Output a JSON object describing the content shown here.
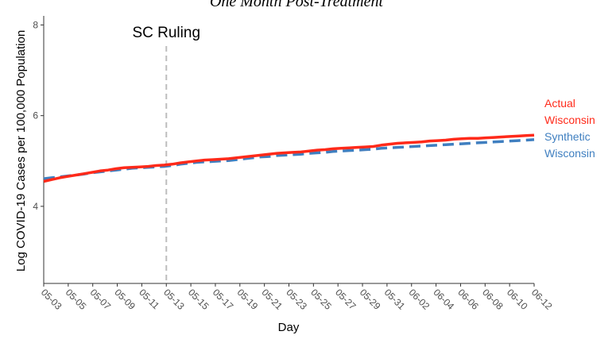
{
  "chart_data": {
    "type": "line",
    "title": "One Month Post-Treatment",
    "xlabel": "Day",
    "ylabel": "Log COVID-19 Cases per 100,000 Population",
    "x_tick_labels": [
      "05-03",
      "05-05",
      "05-07",
      "05-09",
      "05-11",
      "05-13",
      "05-15",
      "05-17",
      "05-19",
      "05-21",
      "05-23",
      "05-25",
      "05-27",
      "05-29",
      "05-31",
      "06-02",
      "06-04",
      "06-06",
      "06-08",
      "06-10",
      "06-12"
    ],
    "y_ticks": [
      4,
      6,
      8
    ],
    "ylim": [
      2.3,
      8.2
    ],
    "grid": false,
    "annotation": {
      "label": "SC Ruling",
      "x_index": 10
    },
    "series": [
      {
        "name": "Actual Wisconsin",
        "label_lines": [
          "Actual",
          "Wisconsin"
        ],
        "color": "#ff2a1a",
        "dash": "solid",
        "values": [
          4.55,
          4.59,
          4.63,
          4.66,
          4.69,
          4.72,
          4.75,
          4.78,
          4.8,
          4.83,
          4.85,
          4.86,
          4.87,
          4.88,
          4.9,
          4.91,
          4.93,
          4.96,
          4.98,
          5.0,
          5.02,
          5.03,
          5.04,
          5.05,
          5.07,
          5.09,
          5.11,
          5.13,
          5.15,
          5.17,
          5.18,
          5.19,
          5.2,
          5.22,
          5.24,
          5.25,
          5.27,
          5.28,
          5.29,
          5.3,
          5.31,
          5.32,
          5.35,
          5.37,
          5.39,
          5.4,
          5.41,
          5.42,
          5.44,
          5.45,
          5.46,
          5.48,
          5.49,
          5.5,
          5.5,
          5.51,
          5.52,
          5.53,
          5.54,
          5.55,
          5.56,
          5.57
        ]
      },
      {
        "name": "Synthetic Wisconsin",
        "label_lines": [
          "Synthetic",
          "Wisconsin"
        ],
        "color": "#3f7fc0",
        "dash": "dashed",
        "values": [
          4.61,
          4.63,
          4.65,
          4.67,
          4.69,
          4.71,
          4.74,
          4.76,
          4.78,
          4.8,
          4.82,
          4.84,
          4.85,
          4.86,
          4.87,
          4.88,
          4.9,
          4.93,
          4.95,
          4.97,
          4.98,
          4.99,
          5.0,
          5.01,
          5.03,
          5.05,
          5.07,
          5.09,
          5.1,
          5.12,
          5.13,
          5.14,
          5.15,
          5.17,
          5.18,
          5.19,
          5.21,
          5.22,
          5.23,
          5.24,
          5.25,
          5.26,
          5.28,
          5.29,
          5.3,
          5.31,
          5.32,
          5.33,
          5.34,
          5.35,
          5.36,
          5.37,
          5.38,
          5.39,
          5.4,
          5.41,
          5.42,
          5.43,
          5.44,
          5.45,
          5.46,
          5.47
        ]
      }
    ]
  }
}
